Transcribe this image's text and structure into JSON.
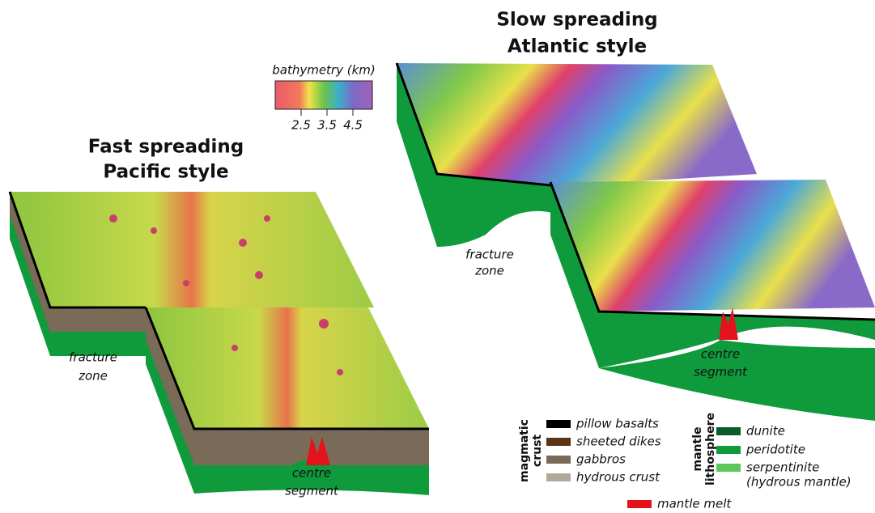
{
  "colorbar": {
    "title": "bathymetry (km)",
    "ticks": [
      "2.5",
      "3.5",
      "4.5"
    ]
  },
  "fast": {
    "title": [
      "Fast spreading",
      "Pacific style"
    ],
    "fracture_zone": [
      "fracture",
      "zone"
    ],
    "centre_segment": [
      "centre",
      "segment"
    ]
  },
  "slow": {
    "title": [
      "Slow spreading",
      "Atlantic style"
    ],
    "fracture_zone": [
      "fracture",
      "zone"
    ],
    "centre_segment": [
      "centre",
      "segment"
    ]
  },
  "legend": {
    "magmatic_crust": {
      "title": [
        "magmatic",
        "crust"
      ],
      "items": [
        "pillow basalts",
        "sheeted dikes",
        "gabbros",
        "hydrous crust"
      ]
    },
    "mantle_lithosphere": {
      "title": [
        "mantle",
        "lithosphere"
      ],
      "items": [
        "dunite",
        "peridotite",
        "serpentinite"
      ],
      "note": "(hydrous mantle)"
    },
    "mantle_melt": "mantle melt"
  }
}
